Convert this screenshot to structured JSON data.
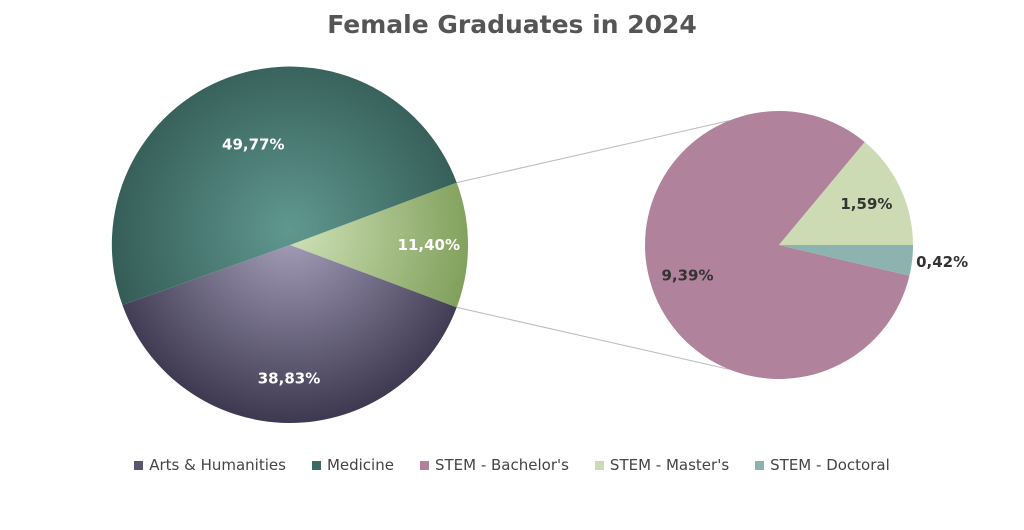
{
  "chart_data": {
    "type": "pie",
    "subtype": "pie-of-pie",
    "title": "Female Graduates in 2024",
    "main_slices": [
      {
        "name": "Arts & Humanities",
        "value": 38.83,
        "label": "38,83%",
        "color": "#5a546f"
      },
      {
        "name": "Medicine",
        "value": 49.77,
        "label": "49,77%",
        "color": "#3d6b63"
      },
      {
        "name": "STEM",
        "value": 11.4,
        "label": "11,40%",
        "color": "#9fbd7f"
      }
    ],
    "secondary_slices": [
      {
        "name": "STEM - Bachelor's",
        "value": 9.39,
        "label": "9,39%",
        "color": "#b0829b"
      },
      {
        "name": "STEM - Master's",
        "value": 1.59,
        "label": "1,59%",
        "color": "#cddbb4"
      },
      {
        "name": "STEM - Doctoral",
        "value": 0.42,
        "label": "0,42%",
        "color": "#8db3b0"
      }
    ],
    "legend_position": "bottom"
  },
  "legend": [
    {
      "label": "Arts & Humanities",
      "color": "#5a546f"
    },
    {
      "label": "Medicine",
      "color": "#3d6b63"
    },
    {
      "label": "STEM - Bachelor's",
      "color": "#b0829b"
    },
    {
      "label": "STEM - Master's",
      "color": "#cddbb4"
    },
    {
      "label": "STEM - Doctoral",
      "color": "#8db3b0"
    }
  ]
}
